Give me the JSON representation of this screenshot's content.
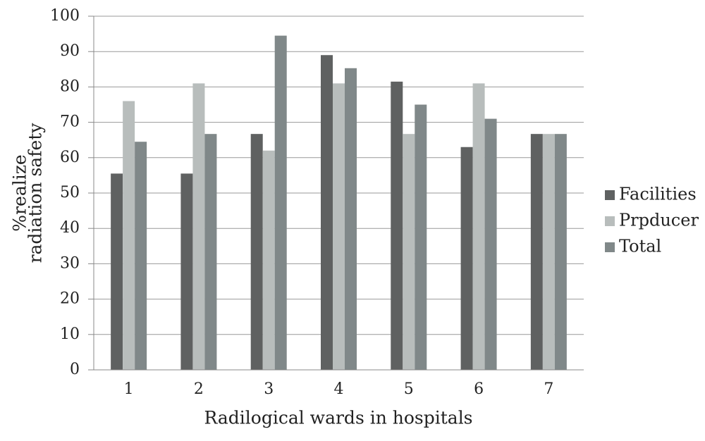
{
  "chart_data": {
    "type": "bar",
    "xlabel": "Radilogical wards in hospitals",
    "ylabel": [
      "%realize",
      "radiation safety"
    ],
    "categories": [
      "1",
      "2",
      "3",
      "4",
      "5",
      "6",
      "7"
    ],
    "series": [
      {
        "name": "Facilities",
        "color": "#5f6161",
        "values": [
          55.5,
          55.5,
          66.7,
          89,
          81.5,
          63,
          66.7
        ]
      },
      {
        "name": "Prpducer",
        "color": "#b8bdbc",
        "values": [
          76,
          81,
          62,
          81,
          66.7,
          81,
          66.7
        ]
      },
      {
        "name": "Total",
        "color": "#808889",
        "values": [
          64.5,
          66.7,
          94.5,
          85.3,
          75,
          71,
          66.7
        ]
      }
    ],
    "ylim": [
      0,
      100
    ],
    "yticks": [
      0,
      10,
      20,
      30,
      40,
      50,
      60,
      70,
      80,
      90,
      100
    ],
    "grid": true,
    "legend": "right"
  }
}
